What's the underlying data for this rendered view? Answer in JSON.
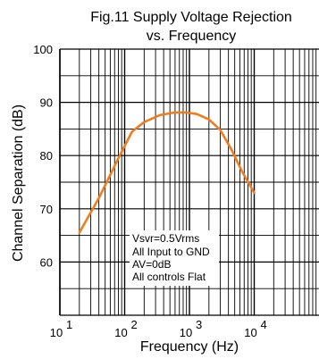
{
  "chart_data": {
    "type": "line",
    "title": "Fig.11 Supply Voltage Rejection",
    "subtitle": "vs. Frequency",
    "xlabel": "Frequency  (Hz)",
    "ylabel": "Channel Separation (dB)",
    "x_scale": "log",
    "xlim": [
      10,
      100000
    ],
    "ylim": [
      50,
      100
    ],
    "x_ticks": [
      {
        "base": "10",
        "exp": "1"
      },
      {
        "base": "10",
        "exp": "2"
      },
      {
        "base": "10",
        "exp": "3"
      },
      {
        "base": "10",
        "exp": "4"
      }
    ],
    "y_ticks": [
      "100",
      "90",
      "80",
      "70",
      "60"
    ],
    "grid": true,
    "line_color": "#f07c1e",
    "series": [
      {
        "x": [
          20,
          40,
          80,
          130,
          200,
          350,
          600,
          900,
          1300,
          2000,
          3000,
          4500,
          6500,
          10000
        ],
        "y": [
          65.5,
          72,
          79.5,
          84.5,
          86.3,
          87.6,
          88.1,
          88.1,
          87.8,
          86.8,
          84.8,
          81.0,
          77.0,
          73.0
        ]
      }
    ],
    "annotations": [
      "Vsvr=0.5Vrms",
      "All Input to GND",
      "AV=0dB",
      "All controls Flat"
    ]
  }
}
